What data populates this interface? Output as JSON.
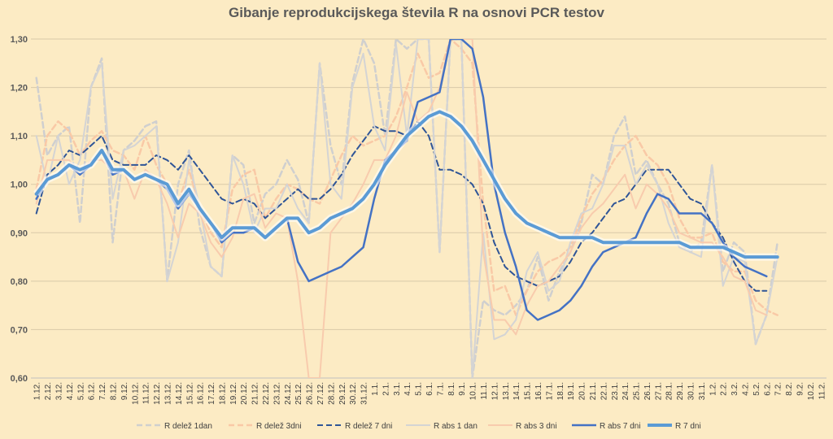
{
  "chart_data": {
    "type": "line",
    "title": "Gibanje reprodukcijskega števila R na osnovi PCR testov",
    "xlabel": "",
    "ylabel": "",
    "ylim": [
      0.6,
      1.3
    ],
    "y_ticks": [
      "0,60",
      "0,70",
      "0,80",
      "0,90",
      "1,00",
      "1,10",
      "1,20",
      "1,30"
    ],
    "grid": true,
    "legend_position": "bottom",
    "categories": [
      "1.12.",
      "2.12.",
      "3.12.",
      "4.12.",
      "5.12.",
      "6.12.",
      "7.12.",
      "8.12.",
      "9.12.",
      "10.12.",
      "11.12.",
      "12.12.",
      "13.12.",
      "14.12.",
      "15.12.",
      "16.12.",
      "17.12.",
      "18.12.",
      "19.12.",
      "20.12.",
      "21.12.",
      "22.12.",
      "23.12.",
      "24.12.",
      "25.12.",
      "26.12.",
      "27.12.",
      "28.12.",
      "29.12.",
      "30.12.",
      "31.12.",
      "1.1.",
      "2.1.",
      "3.1.",
      "4.1.",
      "5.1.",
      "6.1.",
      "7.1.",
      "8.1.",
      "9.1.",
      "10.1.",
      "11.1.",
      "12.1.",
      "13.1.",
      "14.1.",
      "15.1.",
      "16.1.",
      "17.1.",
      "18.1.",
      "19.1.",
      "20.1.",
      "21.1.",
      "22.1.",
      "23.1.",
      "24.1.",
      "25.1.",
      "26.1.",
      "27.1.",
      "28.1.",
      "29.1.",
      "30.1.",
      "31.1.",
      "1.2.",
      "2.2.",
      "3.2.",
      "4.2.",
      "5.2.",
      "6.2.",
      "7.2.",
      "8.2.",
      "9.2.",
      "10.2.",
      "11.2."
    ],
    "series": [
      {
        "name": "R delež 1dan",
        "color": "#cfcfcf",
        "dash": "dashed",
        "width": 2.5,
        "values": [
          1.22,
          1.06,
          1.1,
          1.12,
          0.92,
          1.2,
          1.26,
          0.88,
          1.07,
          1.09,
          1.12,
          1.13,
          0.8,
          1.0,
          1.07,
          0.91,
          0.83,
          0.81,
          1.06,
          1.04,
          0.92,
          0.98,
          1.0,
          1.05,
          1.01,
          0.92,
          1.25,
          1.08,
          1.0,
          1.21,
          1.3,
          1.25,
          1.1,
          1.3,
          1.28,
          1.3,
          1.3,
          0.86,
          1.3,
          1.3,
          0.6,
          0.76,
          0.74,
          0.73,
          0.75,
          0.78,
          0.85,
          0.76,
          0.82,
          0.86,
          0.92,
          1.02,
          1.0,
          1.1,
          1.14,
          1.02,
          1.05,
          1.0,
          0.96,
          0.88,
          0.86,
          0.88,
          1.04,
          0.82,
          0.88,
          0.86,
          0.67,
          0.73,
          0.88,
          null,
          null,
          null,
          null
        ]
      },
      {
        "name": "R delež 3dni",
        "color": "#f9c9a6",
        "dash": "dashed",
        "width": 2.5,
        "values": [
          0.99,
          1.1,
          1.13,
          1.11,
          1.06,
          1.09,
          1.11,
          1.07,
          1.06,
          1.03,
          1.1,
          1.04,
          1.0,
          0.96,
          1.03,
          0.95,
          0.9,
          0.87,
          0.99,
          1.02,
          1.03,
          0.93,
          0.97,
          1.0,
          0.99,
          0.97,
          0.96,
          1.01,
          1.06,
          1.1,
          1.08,
          1.09,
          1.1,
          1.14,
          1.2,
          1.27,
          1.22,
          1.23,
          1.3,
          1.28,
          1.25,
          0.96,
          0.78,
          0.79,
          0.73,
          0.78,
          0.82,
          0.84,
          0.85,
          0.87,
          0.93,
          0.98,
          1.01,
          1.05,
          1.08,
          1.1,
          1.06,
          1.04,
          1.0,
          0.93,
          0.89,
          0.89,
          0.9,
          0.84,
          0.82,
          0.82,
          0.76,
          0.74,
          0.73,
          null,
          null,
          null,
          null
        ]
      },
      {
        "name": "R delež 7 dni",
        "color": "#2f5597",
        "dash": "dashed",
        "width": 2,
        "values": [
          0.94,
          1.02,
          1.04,
          1.07,
          1.06,
          1.08,
          1.1,
          1.05,
          1.04,
          1.04,
          1.04,
          1.06,
          1.05,
          1.03,
          1.06,
          1.03,
          1.0,
          0.97,
          0.96,
          0.97,
          0.96,
          0.93,
          0.95,
          0.97,
          0.99,
          0.97,
          0.97,
          0.99,
          1.02,
          1.06,
          1.09,
          1.12,
          1.11,
          1.11,
          1.1,
          1.13,
          1.1,
          1.03,
          1.03,
          1.02,
          1.0,
          0.96,
          0.88,
          0.83,
          0.81,
          0.8,
          0.79,
          0.8,
          0.81,
          0.84,
          0.88,
          0.9,
          0.93,
          0.96,
          0.97,
          1.0,
          1.03,
          1.03,
          1.03,
          1.0,
          0.97,
          0.96,
          0.92,
          0.89,
          0.84,
          0.8,
          0.78,
          0.78,
          null,
          null,
          null,
          null,
          null
        ]
      },
      {
        "name": "R abs 1 dan",
        "color": "#d4d4d4",
        "dash": "solid",
        "width": 2,
        "values": [
          1.1,
          1.0,
          1.1,
          1.0,
          1.05,
          1.2,
          1.25,
          0.97,
          1.07,
          1.08,
          1.1,
          1.12,
          0.8,
          0.88,
          1.05,
          0.95,
          0.83,
          0.81,
          1.06,
          1.0,
          0.9,
          0.95,
          0.95,
          1.0,
          0.95,
          0.92,
          1.25,
          1.0,
          0.97,
          1.2,
          1.27,
          1.12,
          1.07,
          1.29,
          1.1,
          1.3,
          1.3,
          0.86,
          1.3,
          1.3,
          0.6,
          0.9,
          0.68,
          0.69,
          0.72,
          0.82,
          0.86,
          0.78,
          0.8,
          0.88,
          0.94,
          0.95,
          1.0,
          1.08,
          1.08,
          1.0,
          1.04,
          1.0,
          0.92,
          0.87,
          0.86,
          0.85,
          1.04,
          0.79,
          0.85,
          0.84,
          0.67,
          0.73,
          0.85,
          null,
          null,
          null,
          null
        ]
      },
      {
        "name": "R abs 3 dni",
        "color": "#f8cbad",
        "dash": "solid",
        "width": 2,
        "values": [
          0.96,
          1.05,
          1.05,
          1.05,
          1.02,
          1.05,
          1.05,
          1.03,
          1.03,
          0.97,
          1.03,
          1.01,
          0.96,
          0.89,
          0.96,
          0.94,
          0.88,
          0.85,
          0.89,
          0.97,
          0.98,
          0.91,
          0.94,
          0.93,
          0.8,
          0.6,
          0.6,
          0.9,
          0.93,
          0.96,
          1.0,
          1.05,
          1.05,
          1.1,
          1.19,
          1.13,
          1.15,
          1.2,
          1.3,
          1.3,
          1.3,
          0.86,
          0.72,
          0.72,
          0.69,
          0.75,
          0.79,
          0.8,
          0.83,
          0.86,
          0.91,
          0.94,
          0.96,
          0.99,
          1.02,
          0.95,
          1.0,
          0.98,
          0.95,
          0.9,
          0.89,
          0.88,
          0.88,
          0.85,
          0.81,
          0.8,
          0.74,
          0.73,
          null,
          null,
          null,
          null,
          null
        ]
      },
      {
        "name": "R abs 7 dni",
        "color": "#4472c4",
        "dash": "solid",
        "width": 2.5,
        "values": [
          0.97,
          1.01,
          1.02,
          1.04,
          1.02,
          1.04,
          1.07,
          1.02,
          1.03,
          1.01,
          1.02,
          1.01,
          0.99,
          0.95,
          0.98,
          0.95,
          0.92,
          0.88,
          0.9,
          0.9,
          0.91,
          0.89,
          0.91,
          0.93,
          0.84,
          0.8,
          0.81,
          0.82,
          0.83,
          0.85,
          0.87,
          0.97,
          1.05,
          1.07,
          1.09,
          1.17,
          1.18,
          1.19,
          1.3,
          1.3,
          1.28,
          1.18,
          1.0,
          0.9,
          0.83,
          0.74,
          0.72,
          0.73,
          0.74,
          0.76,
          0.79,
          0.83,
          0.86,
          0.87,
          0.88,
          0.89,
          0.94,
          0.98,
          0.97,
          0.94,
          0.94,
          0.94,
          0.92,
          0.88,
          0.85,
          0.83,
          0.82,
          0.81,
          null,
          null,
          null,
          null,
          null
        ]
      },
      {
        "name": "R 7 dni",
        "color": "#5b9bd5",
        "dash": "solid",
        "width": 4,
        "values": [
          0.98,
          1.01,
          1.02,
          1.04,
          1.03,
          1.04,
          1.07,
          1.03,
          1.03,
          1.01,
          1.02,
          1.01,
          1.0,
          0.96,
          0.99,
          0.95,
          0.92,
          0.89,
          0.91,
          0.91,
          0.91,
          0.89,
          0.91,
          0.93,
          0.93,
          0.9,
          0.91,
          0.93,
          0.94,
          0.95,
          0.97,
          1.0,
          1.04,
          1.07,
          1.1,
          1.12,
          1.14,
          1.15,
          1.14,
          1.12,
          1.09,
          1.05,
          1.01,
          0.97,
          0.94,
          0.92,
          0.91,
          0.9,
          0.89,
          0.89,
          0.89,
          0.89,
          0.88,
          0.88,
          0.88,
          0.88,
          0.88,
          0.88,
          0.88,
          0.88,
          0.87,
          0.87,
          0.87,
          0.87,
          0.86,
          0.85,
          0.85,
          0.85,
          0.85,
          null,
          null,
          null,
          null
        ]
      }
    ]
  }
}
